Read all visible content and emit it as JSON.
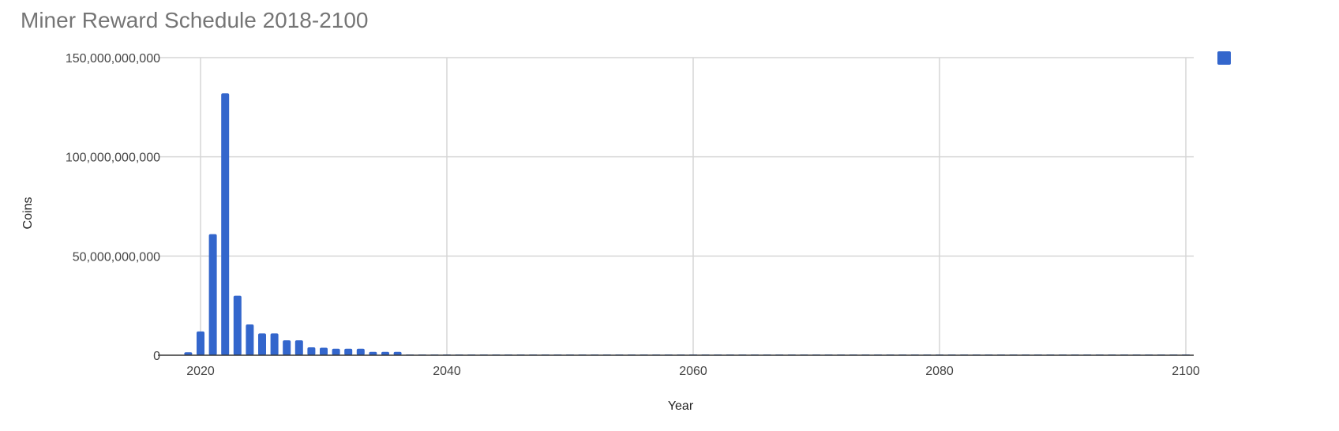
{
  "chart_data": {
    "type": "bar",
    "title": "Miner Reward Schedule 2018-2100",
    "xlabel": "Year",
    "ylabel": "Coins",
    "xlim": [
      2018,
      2100
    ],
    "ylim": [
      0,
      150000000000
    ],
    "x_ticks": [
      2020,
      2040,
      2060,
      2080,
      2100
    ],
    "x_tick_labels": [
      "2020",
      "2040",
      "2060",
      "2080",
      "2100"
    ],
    "y_ticks": [
      0,
      50000000000,
      100000000000,
      150000000000
    ],
    "y_tick_labels": [
      "0",
      "50,000,000,000",
      "100,000,000,000",
      "150,000,000,000"
    ],
    "grid": true,
    "legend_position": "right",
    "color": "#3366CC",
    "series": [
      {
        "x": [
          2019,
          2020,
          2021,
          2022,
          2023,
          2024,
          2025,
          2026,
          2027,
          2028,
          2029,
          2030,
          2031,
          2032,
          2033,
          2034,
          2035,
          2036,
          2037,
          2038,
          2039,
          2040,
          2041,
          2042,
          2043,
          2044,
          2045,
          2046,
          2047,
          2048,
          2049,
          2050,
          2051,
          2052,
          2053,
          2054,
          2055,
          2056,
          2057,
          2058,
          2059,
          2060,
          2061,
          2062,
          2063,
          2064,
          2065,
          2066,
          2067,
          2068,
          2069,
          2070,
          2071,
          2072,
          2073,
          2074,
          2075,
          2076,
          2077,
          2078,
          2079,
          2080,
          2081,
          2082,
          2083,
          2084,
          2085,
          2086,
          2087,
          2088,
          2089,
          2090,
          2091,
          2092,
          2093,
          2094,
          2095,
          2096,
          2097,
          2098,
          2099,
          2100
        ],
        "values": [
          1500000000,
          12000000000,
          61000000000,
          132000000000,
          30000000000,
          15500000000,
          11000000000,
          11000000000,
          7500000000,
          7500000000,
          4000000000,
          3800000000,
          3300000000,
          3300000000,
          3300000000,
          1700000000,
          1700000000,
          1700000000,
          300000000,
          300000000,
          300000000,
          300000000,
          300000000,
          300000000,
          300000000,
          300000000,
          300000000,
          300000000,
          300000000,
          300000000,
          300000000,
          300000000,
          300000000,
          300000000,
          300000000,
          300000000,
          300000000,
          300000000,
          300000000,
          300000000,
          300000000,
          300000000,
          300000000,
          300000000,
          300000000,
          300000000,
          300000000,
          300000000,
          300000000,
          300000000,
          300000000,
          300000000,
          300000000,
          300000000,
          300000000,
          300000000,
          300000000,
          300000000,
          300000000,
          300000000,
          300000000,
          300000000,
          300000000,
          300000000,
          300000000,
          300000000,
          300000000,
          300000000,
          300000000,
          300000000,
          300000000,
          300000000,
          300000000,
          300000000,
          300000000,
          300000000,
          300000000,
          300000000,
          300000000,
          300000000,
          300000000,
          300000000
        ]
      }
    ]
  }
}
